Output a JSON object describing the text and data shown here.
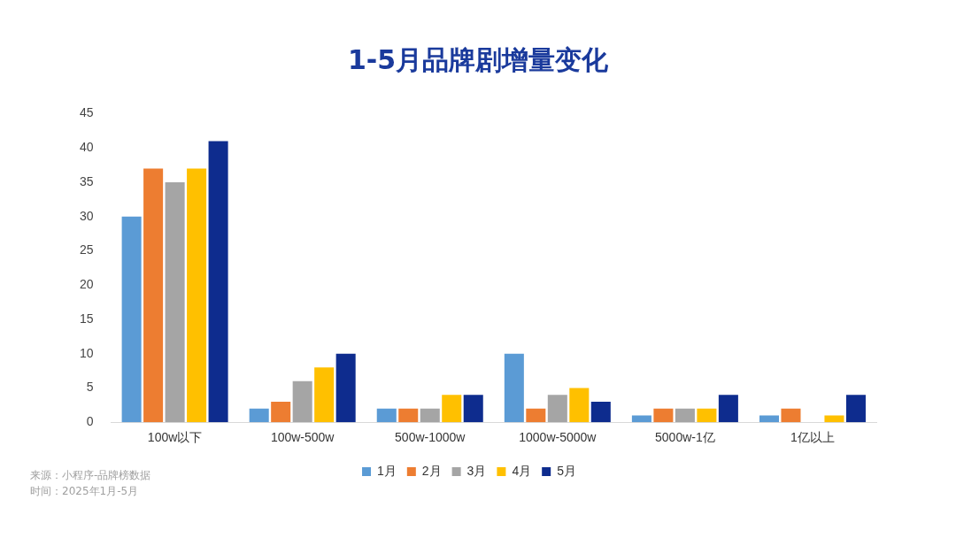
{
  "chart_data": {
    "type": "bar",
    "title": "1-5月品牌剧增量变化",
    "categories": [
      "100w以下",
      "100w-500w",
      "500w-1000w",
      "1000w-5000w",
      "5000w-1亿",
      "1亿以上"
    ],
    "series": [
      {
        "name": "1月",
        "color": "#5b9bd5",
        "values": [
          30,
          2,
          2,
          10,
          1,
          1
        ]
      },
      {
        "name": "2月",
        "color": "#ed7d31",
        "values": [
          37,
          3,
          2,
          2,
          2,
          2
        ]
      },
      {
        "name": "3月",
        "color": "#a5a5a5",
        "values": [
          35,
          6,
          2,
          4,
          2,
          0
        ]
      },
      {
        "name": "4月",
        "color": "#ffc000",
        "values": [
          37,
          8,
          4,
          5,
          2,
          1
        ]
      },
      {
        "name": "5月",
        "color": "#0e2c8e",
        "values": [
          41,
          10,
          4,
          3,
          4,
          4
        ]
      }
    ],
    "ylim": [
      0,
      45
    ],
    "yticks": [
      0,
      5,
      10,
      15,
      20,
      25,
      30,
      35,
      40,
      45
    ],
    "grid": false,
    "legend": "bottom",
    "annotations": [
      "来源：小程序-品牌榜数据",
      "时间：2025年1月-5月"
    ]
  }
}
